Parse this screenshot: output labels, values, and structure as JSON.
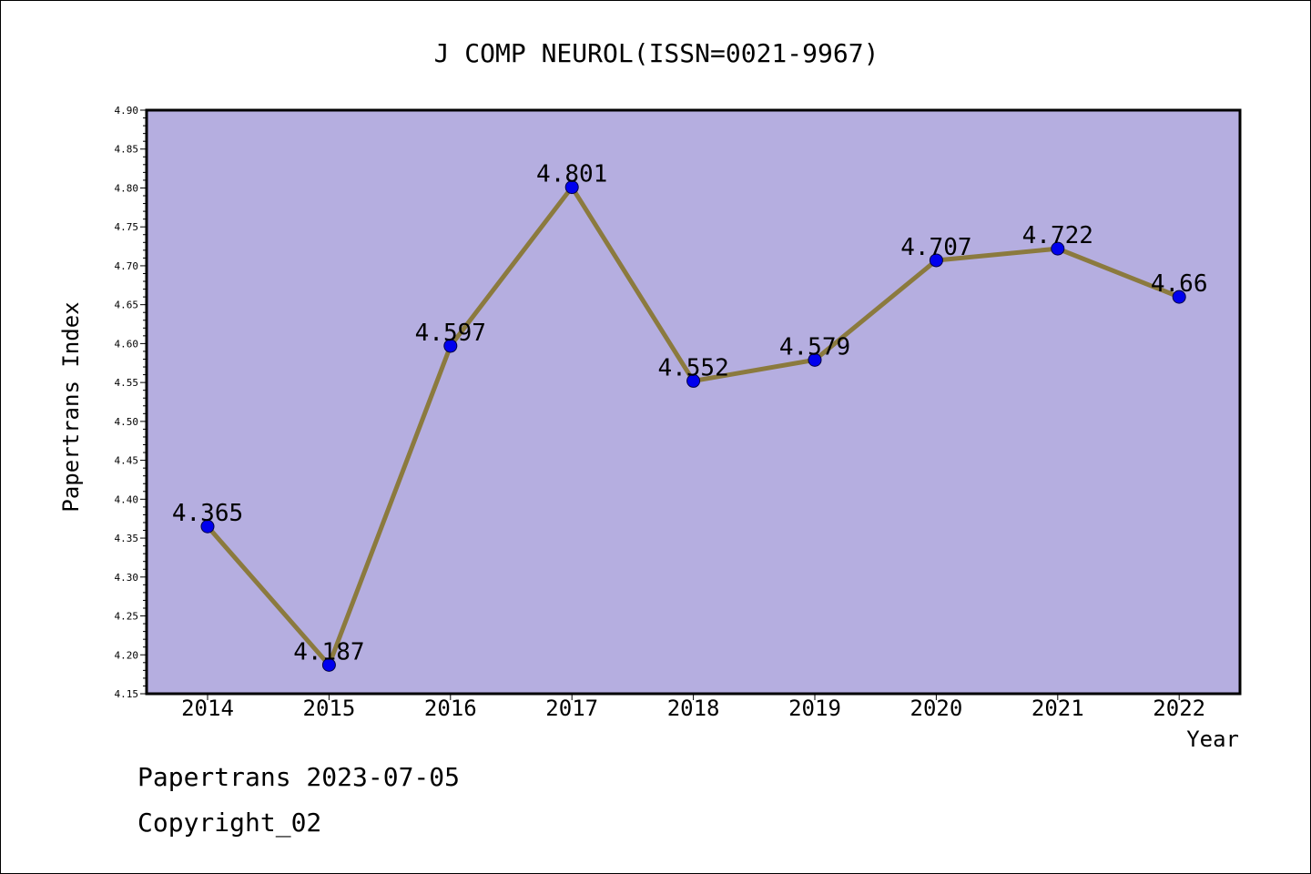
{
  "chart_data": {
    "type": "line",
    "title": "J COMP NEUROL(ISSN=0021-9967)",
    "xlabel": "Year",
    "ylabel": "Papertrans Index",
    "categories": [
      "2014",
      "2015",
      "2016",
      "2017",
      "2018",
      "2019",
      "2020",
      "2021",
      "2022"
    ],
    "values": [
      4.365,
      4.187,
      4.597,
      4.801,
      4.552,
      4.579,
      4.707,
      4.722,
      4.66
    ],
    "data_labels": [
      "4.365",
      "4.187",
      "4.597",
      "4.801",
      "4.552",
      "4.579",
      "4.707",
      "4.722",
      "4.66"
    ],
    "ylim": [
      4.15,
      4.9
    ],
    "yticks": [
      "4.15",
      "4.20",
      "4.25",
      "4.30",
      "4.35",
      "4.40",
      "4.45",
      "4.50",
      "4.55",
      "4.60",
      "4.65",
      "4.70",
      "4.75",
      "4.80",
      "4.85",
      "4.90"
    ],
    "grid": false,
    "legend": "none",
    "colors": {
      "plot_background": "#b5aee0",
      "line": "#8b7a3e",
      "marker": "#0000ee",
      "axis": "#000000"
    }
  },
  "footer": {
    "line1": "Papertrans 2023-07-05",
    "line2": "Copyright_02"
  }
}
